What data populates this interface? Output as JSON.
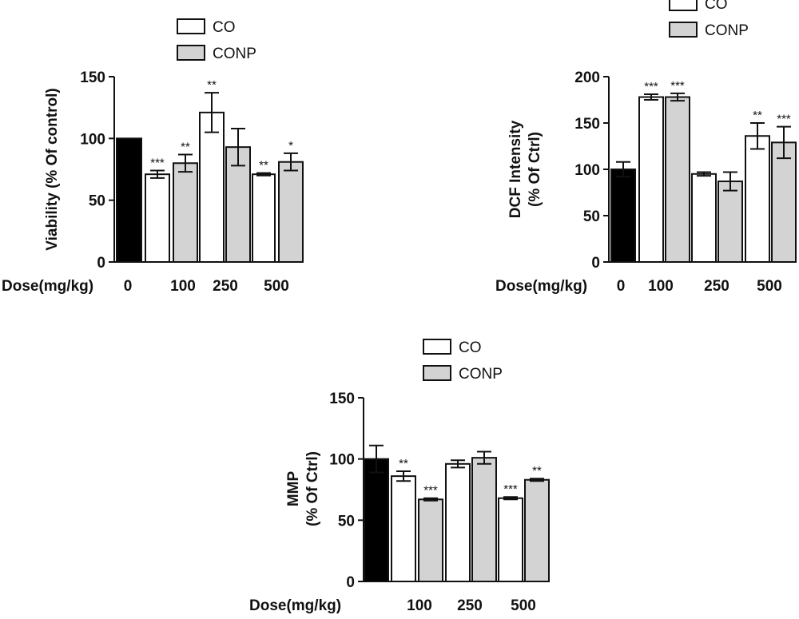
{
  "colors": {
    "control": "#000000",
    "CO": "#ffffff",
    "CONP": "#d3d3d3",
    "stroke": "#111111"
  },
  "chart_data": [
    {
      "type": "bar",
      "title": "",
      "ylabel": "Viability (% Of control)",
      "xlabel": "Dose(mg/kg)",
      "ylim": [
        0,
        150
      ],
      "yticks": [
        0,
        50,
        100,
        150
      ],
      "dose_labels": [
        "0",
        "100",
        "250",
        "500"
      ],
      "legend": [
        "CO",
        "CONP"
      ],
      "bars": [
        {
          "dose": "0",
          "series": "control",
          "value": 100,
          "err": 0,
          "sig": ""
        },
        {
          "dose": "100",
          "series": "CO",
          "value": 71,
          "err": 3,
          "sig": "***"
        },
        {
          "dose": "100",
          "series": "CONP",
          "value": 80,
          "err": 7,
          "sig": "**"
        },
        {
          "dose": "250",
          "series": "CO",
          "value": 121,
          "err": 16,
          "sig": "**"
        },
        {
          "dose": "250",
          "series": "CONP",
          "value": 93,
          "err": 15,
          "sig": ""
        },
        {
          "dose": "500",
          "series": "CO",
          "value": 71,
          "err": 1,
          "sig": "**"
        },
        {
          "dose": "500",
          "series": "CONP",
          "value": 81,
          "err": 7,
          "sig": "*"
        }
      ]
    },
    {
      "type": "bar",
      "title": "",
      "ylabel": [
        "DCF Intensity",
        "(% Of Ctrl)"
      ],
      "xlabel": "Dose(mg/kg)",
      "ylim": [
        0,
        200
      ],
      "yticks": [
        0,
        50,
        100,
        150,
        200
      ],
      "dose_labels": [
        "0",
        "100",
        "250",
        "500"
      ],
      "legend": [
        "CO",
        "CONP"
      ],
      "bars": [
        {
          "dose": "0",
          "series": "control",
          "value": 100,
          "err": 8,
          "sig": ""
        },
        {
          "dose": "100",
          "series": "CO",
          "value": 178,
          "err": 3,
          "sig": "***"
        },
        {
          "dose": "100",
          "series": "CONP",
          "value": 178,
          "err": 4,
          "sig": "***"
        },
        {
          "dose": "250",
          "series": "CO",
          "value": 95,
          "err": 2,
          "sig": ""
        },
        {
          "dose": "250",
          "series": "CONP",
          "value": 87,
          "err": 10,
          "sig": ""
        },
        {
          "dose": "500",
          "series": "CO",
          "value": 136,
          "err": 14,
          "sig": "**"
        },
        {
          "dose": "500",
          "series": "CONP",
          "value": 129,
          "err": 17,
          "sig": "***"
        }
      ]
    },
    {
      "type": "bar",
      "title": "",
      "ylabel": [
        "MMP",
        "(% Of Ctrl)"
      ],
      "xlabel": "Dose(mg/kg)",
      "ylim": [
        0,
        150
      ],
      "yticks": [
        0,
        50,
        100,
        150
      ],
      "dose_labels": [
        "",
        "100",
        "250",
        "500"
      ],
      "legend": [
        "CO",
        "CONP"
      ],
      "bars": [
        {
          "dose": "0",
          "series": "control",
          "value": 100,
          "err": 11,
          "sig": ""
        },
        {
          "dose": "100",
          "series": "CO",
          "value": 86,
          "err": 4,
          "sig": "**"
        },
        {
          "dose": "100",
          "series": "CONP",
          "value": 67,
          "err": 1,
          "sig": "***"
        },
        {
          "dose": "250",
          "series": "CO",
          "value": 96,
          "err": 3,
          "sig": ""
        },
        {
          "dose": "250",
          "series": "CONP",
          "value": 101,
          "err": 5,
          "sig": ""
        },
        {
          "dose": "500",
          "series": "CO",
          "value": 68,
          "err": 1,
          "sig": "***"
        },
        {
          "dose": "500",
          "series": "CONP",
          "value": 83,
          "err": 1,
          "sig": "**"
        }
      ]
    }
  ]
}
